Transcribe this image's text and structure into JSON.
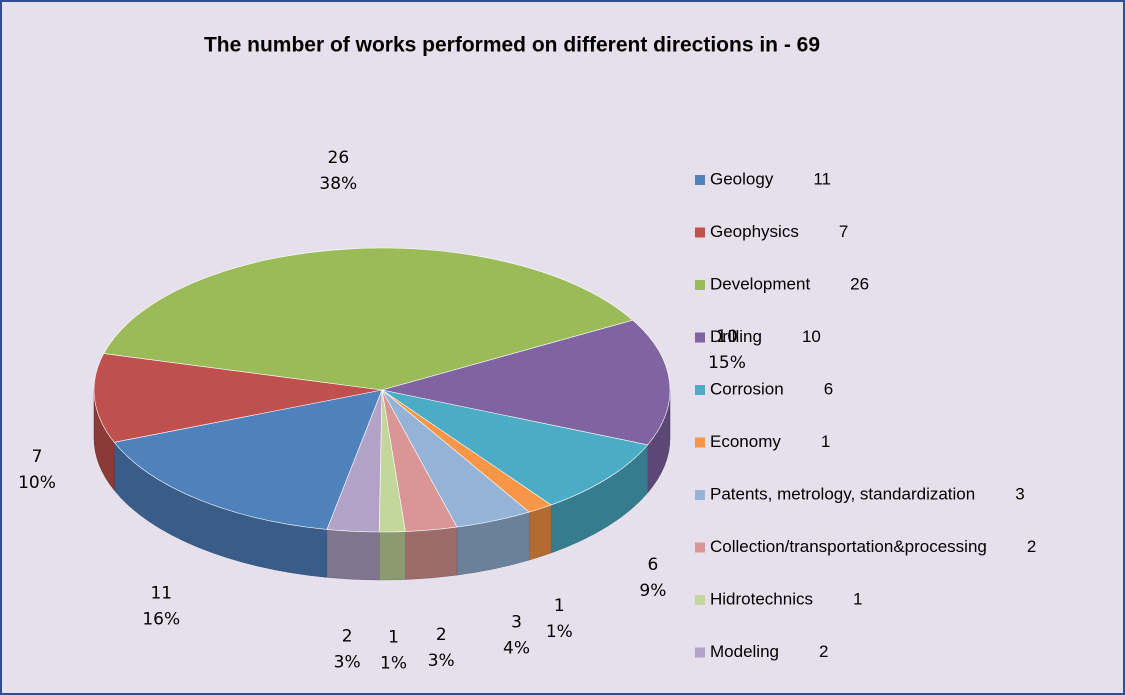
{
  "chart_data": {
    "type": "pie3d",
    "title": "The number of works performed on different directions in - 69",
    "categories": [
      "Geology",
      "Geophysics",
      "Development",
      "Drilling",
      "Corrosion",
      "Economy",
      "Patents, metrology, standardization",
      "Collection/transportation&processing",
      "Hidrotechnics",
      "Modeling"
    ],
    "values": [
      11,
      7,
      26,
      10,
      6,
      1,
      3,
      2,
      1,
      2
    ],
    "percent_labels": [
      "16%",
      "10%",
      "38%",
      "15%",
      "9%",
      "1%",
      "4%",
      "3%",
      "1%",
      "3%"
    ],
    "colors": [
      "#4f81bd",
      "#c0504d",
      "#9bbb59",
      "#8064a2",
      "#4bacc6",
      "#f79646",
      "#95b3d7",
      "#d99694",
      "#c3d69b",
      "#b2a2c7"
    ],
    "legend": "right"
  }
}
